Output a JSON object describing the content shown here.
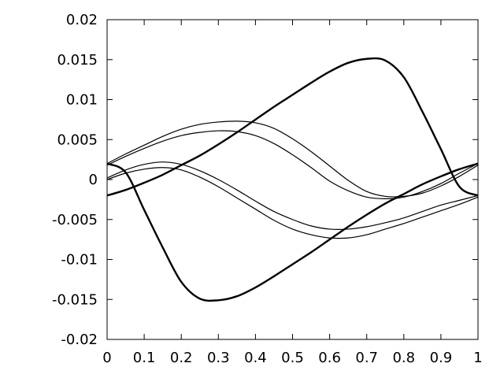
{
  "chart_data": {
    "type": "line",
    "title": "",
    "xlabel": "",
    "ylabel": "",
    "xlim": [
      0,
      1
    ],
    "ylim": [
      -0.02,
      0.02
    ],
    "grid": false,
    "legend": "none",
    "line_color": "#000000",
    "x_ticks": [
      "0",
      "0.1",
      "0.2",
      "0.3",
      "0.4",
      "0.5",
      "0.6",
      "0.7",
      "0.8",
      "0.9",
      "1"
    ],
    "y_ticks": [
      "-0.02",
      "-0.015",
      "-0.01",
      "-0.005",
      "0",
      "0.005",
      "0.01",
      "0.015",
      "0.02"
    ],
    "x_tick_values": [
      0,
      0.1,
      0.2,
      0.3,
      0.4,
      0.5,
      0.6,
      0.7,
      0.8,
      0.9,
      1
    ],
    "y_tick_values": [
      -0.02,
      -0.015,
      -0.01,
      -0.005,
      0,
      0.005,
      0.01,
      0.015,
      0.02
    ],
    "series": [
      {
        "x": [
          0,
          0.05,
          0.1,
          0.15,
          0.2,
          0.25,
          0.3,
          0.35,
          0.4,
          0.45,
          0.5,
          0.55,
          0.6,
          0.65,
          0.7,
          0.75,
          0.8,
          0.85,
          0.9,
          0.95,
          1
        ],
        "y": [
          -0.002,
          -0.0013,
          -0.0004,
          0.0006,
          0.0018,
          0.003,
          0.0044,
          0.0059,
          0.0075,
          0.0091,
          0.0106,
          0.0121,
          0.0135,
          0.0146,
          0.0151,
          0.0149,
          0.0128,
          0.0085,
          0.0038,
          -0.0009,
          -0.002
        ]
      },
      {
        "x": [
          0,
          0.05,
          0.1,
          0.15,
          0.2,
          0.25,
          0.3,
          0.35,
          0.4,
          0.45,
          0.5,
          0.55,
          0.6,
          0.65,
          0.7,
          0.75,
          0.8,
          0.85,
          0.9,
          0.95,
          1
        ],
        "y": [
          0.002,
          0.0009,
          -0.0038,
          -0.0085,
          -0.0128,
          -0.0149,
          -0.0151,
          -0.0146,
          -0.0135,
          -0.0121,
          -0.0106,
          -0.0091,
          -0.0075,
          -0.0059,
          -0.0044,
          -0.003,
          -0.0018,
          -0.0006,
          0.0004,
          0.0013,
          0.002
        ]
      },
      {
        "x": [
          0,
          0.05,
          0.1,
          0.15,
          0.2,
          0.25,
          0.3,
          0.35,
          0.4,
          0.45,
          0.5,
          0.55,
          0.6,
          0.65,
          0.7,
          0.75,
          0.8,
          0.85,
          0.9,
          0.95,
          1
        ],
        "y": [
          0.002,
          0.0032,
          0.0043,
          0.0054,
          0.0063,
          0.0069,
          0.0072,
          0.0073,
          0.0071,
          0.0064,
          0.0051,
          0.0035,
          0.0017,
          -0.0001,
          -0.0015,
          -0.0021,
          -0.0021,
          -0.0017,
          -0.0008,
          0.0004,
          0.0018
        ]
      },
      {
        "x": [
          0,
          0.05,
          0.1,
          0.15,
          0.2,
          0.25,
          0.3,
          0.35,
          0.4,
          0.45,
          0.5,
          0.55,
          0.6,
          0.65,
          0.7,
          0.75,
          0.8,
          0.85,
          0.9,
          0.95,
          1
        ],
        "y": [
          0.0018,
          0.0029,
          0.0039,
          0.0048,
          0.0055,
          0.0059,
          0.0061,
          0.006,
          0.0055,
          0.0045,
          0.0031,
          0.0015,
          -0.0002,
          -0.0014,
          -0.0022,
          -0.0024,
          -0.0022,
          -0.0015,
          -0.0005,
          0.0008,
          0.002
        ]
      },
      {
        "x": [
          0,
          0.05,
          0.1,
          0.15,
          0.2,
          0.25,
          0.3,
          0.35,
          0.4,
          0.45,
          0.5,
          0.55,
          0.6,
          0.65,
          0.7,
          0.75,
          0.8,
          0.85,
          0.9,
          0.95,
          1
        ],
        "y": [
          0.0002,
          0.0012,
          0.0019,
          0.0022,
          0.0019,
          0.0011,
          0.0,
          -0.0013,
          -0.0027,
          -0.004,
          -0.005,
          -0.0058,
          -0.0062,
          -0.0062,
          -0.0059,
          -0.0054,
          -0.0048,
          -0.004,
          -0.0032,
          -0.0026,
          -0.002
        ]
      },
      {
        "x": [
          0,
          0.05,
          0.1,
          0.15,
          0.2,
          0.25,
          0.3,
          0.35,
          0.4,
          0.45,
          0.5,
          0.55,
          0.6,
          0.65,
          0.7,
          0.75,
          0.8,
          0.85,
          0.9,
          0.95,
          1
        ],
        "y": [
          0.0,
          0.0008,
          0.0013,
          0.0015,
          0.0012,
          0.0003,
          -0.0009,
          -0.0023,
          -0.0037,
          -0.0051,
          -0.0062,
          -0.0069,
          -0.0073,
          -0.0073,
          -0.0069,
          -0.0062,
          -0.0055,
          -0.0047,
          -0.0039,
          -0.0031,
          -0.0022
        ]
      }
    ]
  }
}
